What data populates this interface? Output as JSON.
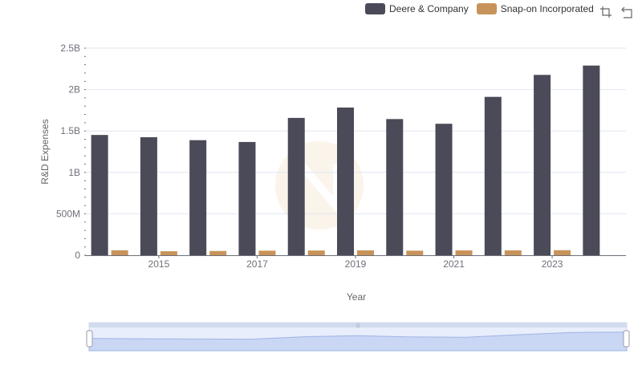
{
  "legend": {
    "items": [
      {
        "label": "Deere & Company",
        "color": "#4a4a58"
      },
      {
        "label": "Snap-on Incorporated",
        "color": "#c8935a"
      }
    ]
  },
  "toolbox": {
    "icons": [
      "zoom-icon",
      "restore-icon"
    ]
  },
  "chart_data": {
    "type": "bar",
    "x": [
      2014,
      2015,
      2016,
      2017,
      2018,
      2019,
      2020,
      2021,
      2022,
      2023,
      2024
    ],
    "x_tick_labels": [
      "2015",
      "2017",
      "2019",
      "2021",
      "2023"
    ],
    "y_tick_labels": [
      "0",
      "500M",
      "1B",
      "1.5B",
      "2B",
      "2.5B"
    ],
    "y_ticks": [
      0,
      500000000,
      1000000000,
      1500000000,
      2000000000,
      2500000000
    ],
    "ylim": [
      0,
      2500000000
    ],
    "xlabel": "Year",
    "ylabel": "R&D Expenses",
    "grid": true,
    "legend_position": "top-right",
    "series": [
      {
        "name": "Deere & Company",
        "color": "#4a4a58",
        "values": [
          1452000000,
          1425000000,
          1389000000,
          1367000000,
          1658000000,
          1783000000,
          1644000000,
          1587000000,
          1912000000,
          2177000000,
          2290000000
        ]
      },
      {
        "name": "Snap-on Incorporated",
        "color": "#c8935a",
        "values": [
          60000000,
          48000000,
          51000000,
          55000000,
          57000000,
          59000000,
          55000000,
          58000000,
          59000000,
          61000000,
          0
        ]
      }
    ]
  }
}
